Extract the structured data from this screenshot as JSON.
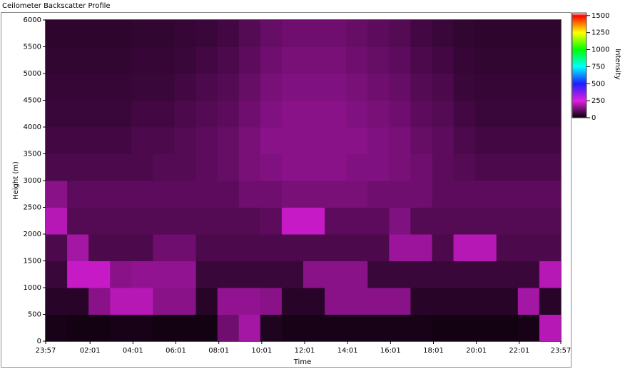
{
  "chart_data": {
    "type": "heatmap",
    "title": "Ceilometer Backscatter Profile",
    "xlabel": "Time",
    "ylabel": "Height (m)",
    "colorbar_label": "Intensity",
    "xlim": [
      0,
      1440
    ],
    "xticks": [
      {
        "value": 0,
        "label": "23:57"
      },
      {
        "value": 124,
        "label": "02:01"
      },
      {
        "value": 244,
        "label": "04:01"
      },
      {
        "value": 364,
        "label": "06:01"
      },
      {
        "value": 484,
        "label": "08:01"
      },
      {
        "value": 604,
        "label": "10:01"
      },
      {
        "value": 724,
        "label": "12:01"
      },
      {
        "value": 844,
        "label": "14:01"
      },
      {
        "value": 964,
        "label": "16:01"
      },
      {
        "value": 1084,
        "label": "18:01"
      },
      {
        "value": 1204,
        "label": "20:01"
      },
      {
        "value": 1324,
        "label": "22:01"
      },
      {
        "value": 1440,
        "label": "23:57"
      }
    ],
    "ylim": [
      0,
      6000
    ],
    "yticks": [
      0,
      500,
      1000,
      1500,
      2000,
      2500,
      3000,
      3500,
      4000,
      4500,
      5000,
      5500,
      6000
    ],
    "clim": [
      0,
      1540
    ],
    "cticks": [
      0,
      250,
      500,
      750,
      1000,
      1250,
      1500
    ],
    "xbins": [
      0,
      60,
      120,
      180,
      240,
      300,
      360,
      420,
      480,
      540,
      600,
      660,
      720,
      780,
      840,
      900,
      960,
      1020,
      1080,
      1140,
      1200,
      1260,
      1320,
      1380,
      1440
    ],
    "ybins": [
      0,
      500,
      1000,
      1500,
      2000,
      2500,
      3000,
      3500,
      4000,
      4500,
      5000,
      5500,
      6000
    ],
    "values": [
      [
        20,
        15,
        15,
        20,
        20,
        15,
        15,
        15,
        120,
        180,
        30,
        20,
        20,
        20,
        20,
        20,
        20,
        20,
        15,
        15,
        15,
        15,
        20,
        200
      ],
      [
        40,
        40,
        150,
        200,
        200,
        150,
        150,
        40,
        160,
        160,
        150,
        40,
        40,
        150,
        150,
        150,
        150,
        40,
        40,
        40,
        40,
        40,
        180,
        40
      ],
      [
        60,
        220,
        220,
        150,
        160,
        160,
        160,
        60,
        60,
        60,
        60,
        60,
        150,
        150,
        150,
        60,
        60,
        60,
        60,
        60,
        60,
        60,
        60,
        200
      ],
      [
        80,
        180,
        80,
        80,
        80,
        120,
        120,
        80,
        80,
        80,
        80,
        80,
        80,
        80,
        80,
        80,
        170,
        170,
        80,
        200,
        200,
        80,
        80,
        80
      ],
      [
        200,
        90,
        90,
        90,
        90,
        90,
        90,
        90,
        90,
        90,
        100,
        220,
        220,
        100,
        100,
        100,
        140,
        90,
        90,
        90,
        90,
        90,
        90,
        90
      ],
      [
        150,
        100,
        100,
        100,
        100,
        100,
        100,
        100,
        100,
        120,
        120,
        130,
        130,
        130,
        130,
        120,
        120,
        120,
        100,
        100,
        100,
        100,
        100,
        100
      ],
      [
        80,
        80,
        80,
        80,
        80,
        90,
        90,
        100,
        110,
        130,
        140,
        150,
        150,
        150,
        140,
        140,
        130,
        120,
        100,
        90,
        80,
        80,
        80,
        80
      ],
      [
        70,
        70,
        70,
        70,
        80,
        80,
        90,
        100,
        110,
        130,
        150,
        150,
        150,
        150,
        150,
        140,
        130,
        110,
        100,
        80,
        70,
        70,
        70,
        70
      ],
      [
        60,
        60,
        60,
        60,
        70,
        70,
        80,
        90,
        100,
        120,
        140,
        150,
        150,
        150,
        140,
        130,
        120,
        100,
        90,
        70,
        60,
        60,
        60,
        60
      ],
      [
        55,
        55,
        55,
        55,
        60,
        60,
        70,
        80,
        90,
        110,
        130,
        140,
        140,
        140,
        130,
        120,
        110,
        90,
        80,
        60,
        55,
        55,
        55,
        55
      ],
      [
        50,
        50,
        50,
        50,
        55,
        55,
        60,
        70,
        80,
        100,
        120,
        130,
        130,
        130,
        120,
        110,
        100,
        80,
        70,
        55,
        50,
        50,
        50,
        50
      ],
      [
        45,
        45,
        45,
        45,
        50,
        50,
        55,
        60,
        70,
        90,
        110,
        120,
        120,
        120,
        110,
        100,
        90,
        70,
        60,
        50,
        45,
        45,
        45,
        45
      ]
    ]
  }
}
